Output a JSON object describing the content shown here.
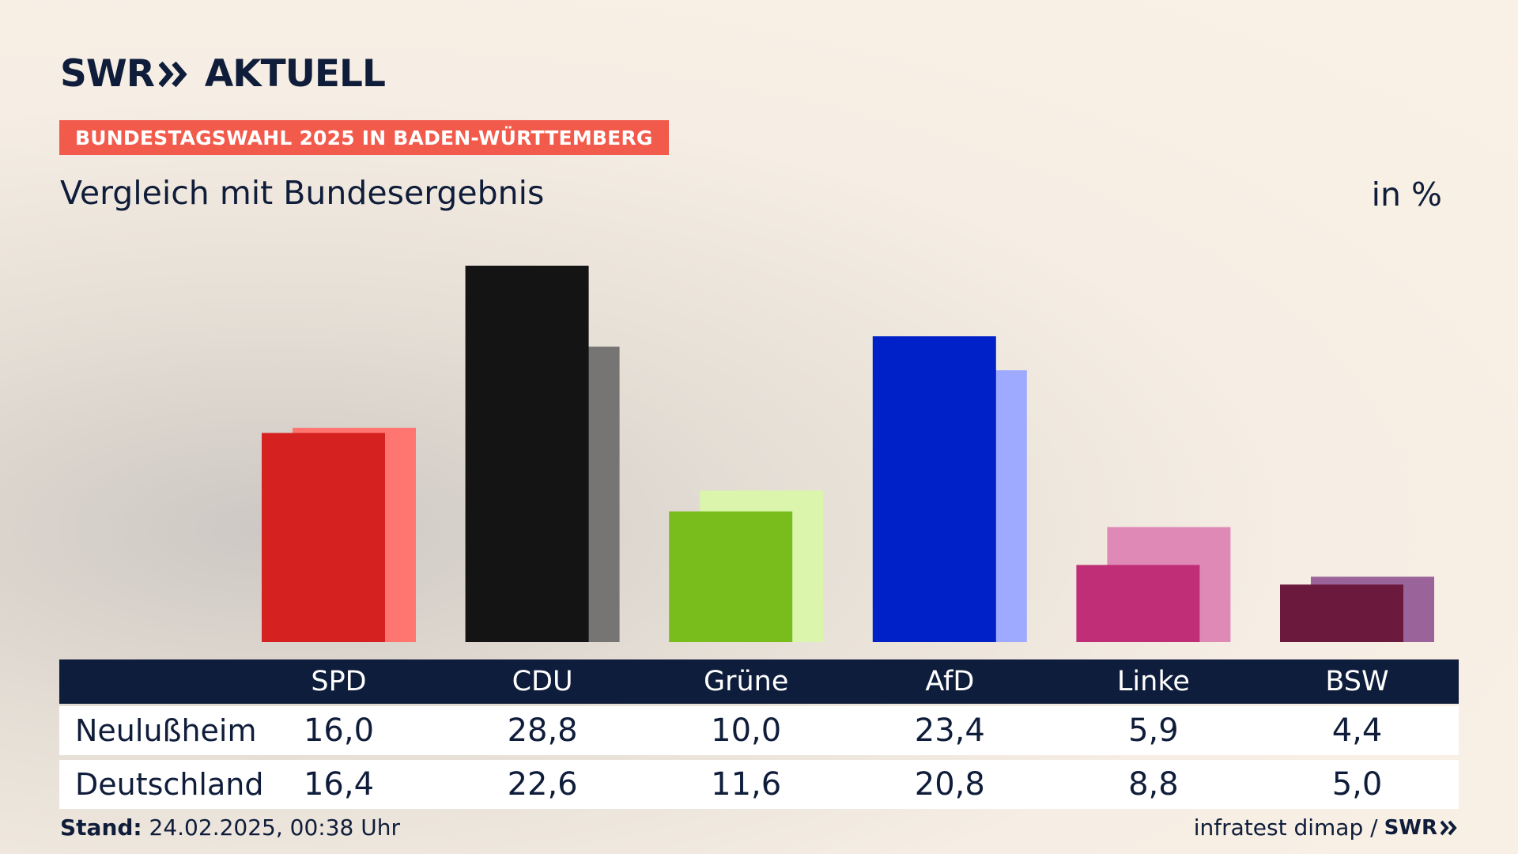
{
  "brand": {
    "logo_word1": "SWR",
    "logo_word2": "AKTUELL"
  },
  "kicker": "BUNDESTAGSWAHL 2025 IN BADEN-WÜRTTEMBERG",
  "headline": "Vergleich mit Bundesergebnis",
  "unit": "in %",
  "footer": {
    "stand_label": "Stand:",
    "stand_value": "24.02.2025, 00:38 Uhr",
    "source": "infratest dimap /",
    "source_logo": "SWR"
  },
  "table": {
    "rows": [
      {
        "label": "Neulußheim",
        "values": [
          "16,0",
          "28,8",
          "10,0",
          "23,4",
          "5,9",
          "4,4"
        ]
      },
      {
        "label": "Deutschland",
        "values": [
          "16,4",
          "22,6",
          "11,6",
          "20,8",
          "8,8",
          "5,0"
        ]
      }
    ]
  },
  "chart_data": {
    "type": "bar",
    "categories": [
      "SPD",
      "CDU",
      "Grüne",
      "AfD",
      "Linke",
      "BSW"
    ],
    "series": [
      {
        "name": "Neulußheim",
        "values": [
          16.0,
          28.8,
          10.0,
          23.4,
          5.9,
          4.4
        ],
        "colors": [
          "#d52120",
          "#141414",
          "#79bd1d",
          "#0020c8",
          "#bf2e76",
          "#6b1a3e"
        ]
      },
      {
        "name": "Deutschland",
        "values": [
          16.4,
          22.6,
          11.6,
          20.8,
          8.8,
          5.0
        ],
        "colors": [
          "#ff7670",
          "#767573",
          "#dbf5ad",
          "#9eaaff",
          "#df89b6",
          "#9a6399"
        ]
      }
    ],
    "ylim": [
      0,
      28.8
    ]
  }
}
